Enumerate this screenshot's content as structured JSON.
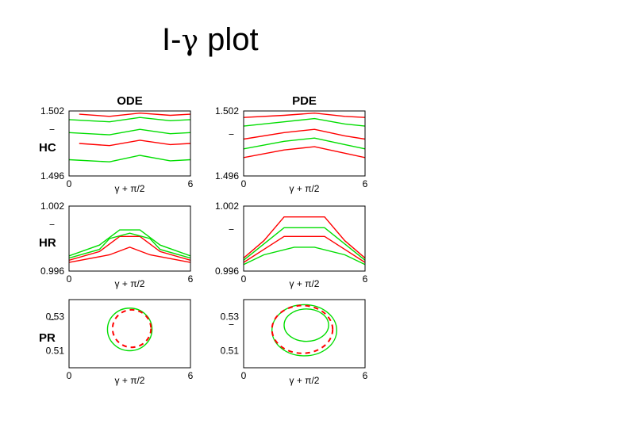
{
  "slide": {
    "title_prefix": "I-",
    "title_symbol": "γ",
    "title_suffix": " plot"
  },
  "colors": {
    "series_a": "#ff0000",
    "series_b": "#00dd00",
    "frame": "#000000"
  },
  "chart_data": [
    {
      "type": "line",
      "id": "ode-hc",
      "title": "ODE",
      "ylabel": "HC",
      "ylabel_bar": "‾",
      "xlabel": "γ + π/2",
      "xlim": [
        0,
        6
      ],
      "ylim": [
        1.496,
        1.502
      ],
      "xticklabels": [
        "0",
        "6"
      ],
      "yticklabels": [
        "1.502",
        "1.496"
      ],
      "grid": false,
      "series": [
        {
          "color": "#ff0000",
          "values": [
            [
              0.5,
              1.5017
            ],
            [
              2.0,
              1.5015
            ],
            [
              3.5,
              1.5018
            ],
            [
              5.0,
              1.5016
            ],
            [
              6.0,
              1.5017
            ]
          ]
        },
        {
          "color": "#00dd00",
          "values": [
            [
              0.0,
              1.5012
            ],
            [
              2.0,
              1.501
            ],
            [
              3.5,
              1.5014
            ],
            [
              5.0,
              1.5011
            ],
            [
              6.0,
              1.5012
            ]
          ]
        },
        {
          "color": "#00dd00",
          "values": [
            [
              0.0,
              1.5
            ],
            [
              2.0,
              1.4998
            ],
            [
              3.5,
              1.5003
            ],
            [
              5.0,
              1.4999
            ],
            [
              6.0,
              1.5
            ]
          ]
        },
        {
          "color": "#ff0000",
          "values": [
            [
              0.5,
              1.499
            ],
            [
              2.0,
              1.4988
            ],
            [
              3.5,
              1.4993
            ],
            [
              5.0,
              1.4989
            ],
            [
              6.0,
              1.499
            ]
          ]
        },
        {
          "color": "#00dd00",
          "values": [
            [
              0.0,
              1.4975
            ],
            [
              2.0,
              1.4973
            ],
            [
              3.5,
              1.4979
            ],
            [
              5.0,
              1.4974
            ],
            [
              6.0,
              1.4975
            ]
          ]
        }
      ]
    },
    {
      "type": "line",
      "id": "pde-hc",
      "title": "PDE",
      "ylabel": "",
      "ylabel_bar": "‾",
      "xlabel": "γ + π/2",
      "xlim": [
        0,
        6
      ],
      "ylim": [
        1.496,
        1.502
      ],
      "xticklabels": [
        "0",
        "6"
      ],
      "yticklabels": [
        "1.502",
        "1.496"
      ],
      "grid": false,
      "series": [
        {
          "color": "#ff0000",
          "values": [
            [
              0.0,
              1.5014
            ],
            [
              2.0,
              1.5016
            ],
            [
              3.5,
              1.5018
            ],
            [
              5.0,
              1.5015
            ],
            [
              6.0,
              1.5014
            ]
          ]
        },
        {
          "color": "#00dd00",
          "values": [
            [
              0.0,
              1.5006
            ],
            [
              2.0,
              1.501
            ],
            [
              3.5,
              1.5013
            ],
            [
              5.0,
              1.5008
            ],
            [
              6.0,
              1.5006
            ]
          ]
        },
        {
          "color": "#ff0000",
          "values": [
            [
              0.0,
              1.4994
            ],
            [
              2.0,
              1.5
            ],
            [
              3.5,
              1.5003
            ],
            [
              5.0,
              1.4997
            ],
            [
              6.0,
              1.4994
            ]
          ]
        },
        {
          "color": "#00dd00",
          "values": [
            [
              0.0,
              1.4985
            ],
            [
              2.0,
              1.4992
            ],
            [
              3.5,
              1.4995
            ],
            [
              5.0,
              1.4989
            ],
            [
              6.0,
              1.4985
            ]
          ]
        },
        {
          "color": "#ff0000",
          "values": [
            [
              0.0,
              1.4977
            ],
            [
              2.0,
              1.4984
            ],
            [
              3.5,
              1.4987
            ],
            [
              5.0,
              1.4981
            ],
            [
              6.0,
              1.4977
            ]
          ]
        }
      ]
    },
    {
      "type": "line",
      "id": "ode-hr",
      "title": "",
      "ylabel": "HR",
      "ylabel_bar": "‾",
      "xlabel": "γ + π/2",
      "xlim": [
        0,
        6
      ],
      "ylim": [
        0.996,
        1.002
      ],
      "xticklabels": [
        "0",
        "6"
      ],
      "yticklabels": [
        "1.002",
        "0.996"
      ],
      "grid": false,
      "series": [
        {
          "color": "#ff0000",
          "values": [
            [
              0.0,
              0.997
            ],
            [
              1.5,
              0.9978
            ],
            [
              2.5,
              0.9992
            ],
            [
              3.5,
              0.9992
            ],
            [
              4.5,
              0.9978
            ],
            [
              6.0,
              0.997
            ]
          ]
        },
        {
          "color": "#00dd00",
          "values": [
            [
              0.0,
              0.9974
            ],
            [
              1.5,
              0.9984
            ],
            [
              2.5,
              0.9998
            ],
            [
              3.5,
              0.9998
            ],
            [
              4.5,
              0.9984
            ],
            [
              6.0,
              0.9974
            ]
          ]
        },
        {
          "color": "#00dd00",
          "values": [
            [
              0.0,
              0.9972
            ],
            [
              1.5,
              0.998
            ],
            [
              2.0,
              0.999
            ],
            [
              3.0,
              0.9995
            ],
            [
              4.0,
              0.999
            ],
            [
              4.5,
              0.998
            ],
            [
              6.0,
              0.9972
            ]
          ]
        },
        {
          "color": "#ff0000",
          "values": [
            [
              0.0,
              0.9968
            ],
            [
              2.0,
              0.9975
            ],
            [
              3.0,
              0.9982
            ],
            [
              4.0,
              0.9975
            ],
            [
              6.0,
              0.9968
            ]
          ]
        }
      ]
    },
    {
      "type": "line",
      "id": "pde-hr",
      "title": "",
      "ylabel": "",
      "ylabel_bar": "‾",
      "xlabel": "γ + π/2",
      "xlim": [
        0,
        6
      ],
      "ylim": [
        0.996,
        1.002
      ],
      "xticklabels": [
        "0",
        "6"
      ],
      "yticklabels": [
        "1.002",
        "0.996"
      ],
      "grid": false,
      "series": [
        {
          "color": "#ff0000",
          "values": [
            [
              0.0,
              0.9972
            ],
            [
              1.0,
              0.9988
            ],
            [
              2.0,
              1.001
            ],
            [
              4.0,
              1.001
            ],
            [
              5.0,
              0.9988
            ],
            [
              6.0,
              0.9972
            ]
          ]
        },
        {
          "color": "#00dd00",
          "values": [
            [
              0.0,
              0.997
            ],
            [
              1.0,
              0.9985
            ],
            [
              2.0,
              1.0
            ],
            [
              4.0,
              1.0
            ],
            [
              5.0,
              0.9985
            ],
            [
              6.0,
              0.997
            ]
          ]
        },
        {
          "color": "#ff0000",
          "values": [
            [
              0.0,
              0.9968
            ],
            [
              1.0,
              0.998
            ],
            [
              2.0,
              0.9992
            ],
            [
              4.0,
              0.9992
            ],
            [
              5.0,
              0.998
            ],
            [
              6.0,
              0.9968
            ]
          ]
        },
        {
          "color": "#00dd00",
          "values": [
            [
              0.0,
              0.9966
            ],
            [
              1.0,
              0.9975
            ],
            [
              2.5,
              0.9982
            ],
            [
              3.5,
              0.9982
            ],
            [
              5.0,
              0.9975
            ],
            [
              6.0,
              0.9966
            ]
          ]
        }
      ]
    },
    {
      "type": "line",
      "id": "ode-pr",
      "title": "",
      "ylabel": "PR",
      "ylabel_bar": "‾",
      "xlabel": "γ + π/2",
      "xlim": [
        0,
        6
      ],
      "ylim": [
        0.5,
        0.54
      ],
      "xticklabels": [
        "0",
        "6"
      ],
      "yticklabels": [
        "0.53",
        "0.51"
      ],
      "ytickvalues": [
        0.53,
        0.51
      ],
      "grid": false,
      "loops": [
        {
          "color": "#00dd00",
          "cx": 3.0,
          "cy": 0.5225,
          "rx": 1.1,
          "ry": 0.0125
        },
        {
          "color": "#ff0000",
          "cx": 3.1,
          "cy": 0.523,
          "rx": 0.95,
          "ry": 0.011,
          "dashed": true
        }
      ]
    },
    {
      "type": "line",
      "id": "pde-pr",
      "title": "",
      "ylabel": "",
      "ylabel_bar": "‾",
      "xlabel": "γ + π/2",
      "xlim": [
        0,
        6
      ],
      "ylim": [
        0.5,
        0.54
      ],
      "xticklabels": [
        "0",
        "6"
      ],
      "yticklabels": [
        "0.53",
        "0.51"
      ],
      "ytickvalues": [
        0.53,
        0.51
      ],
      "grid": false,
      "loops": [
        {
          "color": "#00dd00",
          "cx": 3.0,
          "cy": 0.522,
          "rx": 1.6,
          "ry": 0.015
        },
        {
          "color": "#ff0000",
          "cx": 2.9,
          "cy": 0.5225,
          "rx": 1.5,
          "ry": 0.014,
          "dashed": true
        },
        {
          "color": "#00dd00",
          "cx": 3.1,
          "cy": 0.525,
          "rx": 1.1,
          "ry": 0.0095
        }
      ]
    }
  ]
}
